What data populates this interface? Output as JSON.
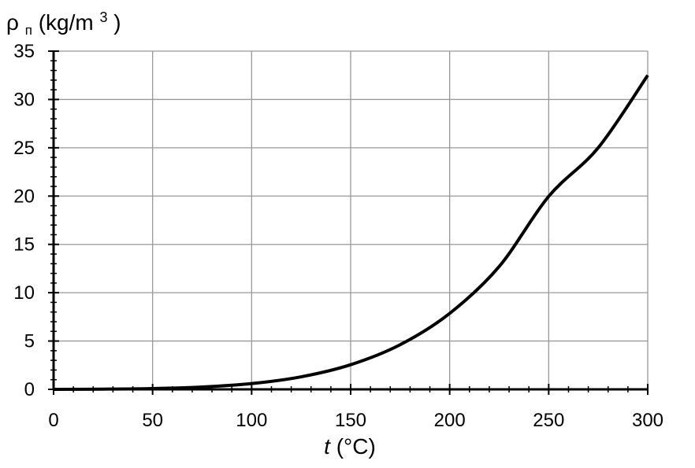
{
  "chart_data": {
    "type": "line",
    "title": "",
    "ylabel": {
      "symbol": "ρ",
      "subscript": "п",
      "unit_open": " (kg/m",
      "unit_exp": "3",
      "unit_close": ")"
    },
    "xlabel": {
      "symbol": "t",
      "unit": " (°C)"
    },
    "xlim": [
      0,
      300
    ],
    "ylim": [
      0,
      35
    ],
    "x_ticks": [
      0,
      50,
      100,
      150,
      200,
      250,
      300
    ],
    "x_tick_labels": [
      "0",
      "50",
      "100",
      "150",
      "200",
      "250",
      "300"
    ],
    "y_ticks": [
      0,
      5,
      10,
      15,
      20,
      25,
      30,
      35
    ],
    "y_tick_labels": [
      "0",
      "5",
      "10",
      "15",
      "20",
      "25",
      "30",
      "35"
    ],
    "x_minor_step": 10,
    "y_minor_step": 1,
    "grid": true,
    "legend": "none",
    "colors": {
      "line": "#000000",
      "grid": "#999999",
      "axis": "#000000"
    },
    "series": [
      {
        "x": [
          0,
          25,
          50,
          75,
          100,
          125,
          150,
          175,
          200,
          225,
          250,
          275,
          300
        ],
        "y": [
          0.005,
          0.023,
          0.083,
          0.242,
          0.598,
          1.3,
          2.55,
          4.62,
          7.86,
          12.71,
          19.97,
          25.0,
          32.5
        ]
      }
    ]
  }
}
